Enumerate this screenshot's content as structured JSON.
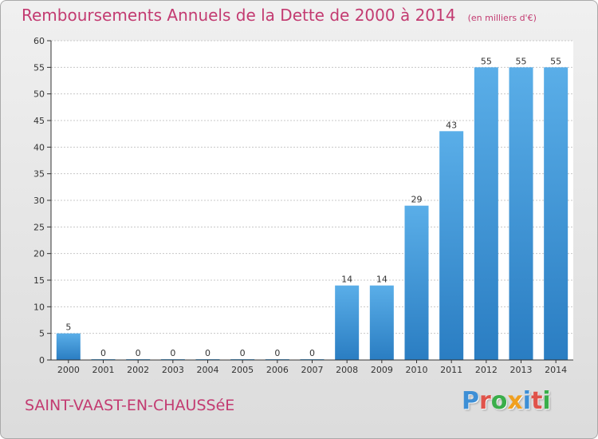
{
  "header": {
    "title": "Remboursements Annuels de la Dette de 2000 à 2014",
    "subtitle": "(en milliers d'€)"
  },
  "footer": {
    "commune": "SAINT-VAAST-EN-CHAUSSéE",
    "brand": "Proxiti"
  },
  "colors": {
    "bar_top": "#5aaee8",
    "bar_bottom": "#2a7dc2",
    "title": "#c33b71",
    "axis": "#333333",
    "grid": "#c8c8c8"
  },
  "chart_data": {
    "type": "bar",
    "title": "Remboursements Annuels de la Dette de 2000 à 2014",
    "subtitle": "(en milliers d'€)",
    "categories": [
      "2000",
      "2001",
      "2002",
      "2003",
      "2004",
      "2005",
      "2006",
      "2007",
      "2008",
      "2009",
      "2010",
      "2011",
      "2012",
      "2013",
      "2014"
    ],
    "values": [
      5,
      0,
      0,
      0,
      0,
      0,
      0,
      0,
      14,
      14,
      29,
      43,
      55,
      55,
      55
    ],
    "data_labels": [
      "5",
      "0",
      "0",
      "0",
      "0",
      "0",
      "0",
      "0",
      "14",
      "14",
      "29",
      "43",
      "55",
      "55",
      "55"
    ],
    "ylim": [
      0,
      60
    ],
    "yticks": [
      0,
      5,
      10,
      15,
      20,
      25,
      30,
      35,
      40,
      45,
      50,
      55,
      60
    ],
    "xlabel": "",
    "ylabel": "",
    "grid": true
  }
}
